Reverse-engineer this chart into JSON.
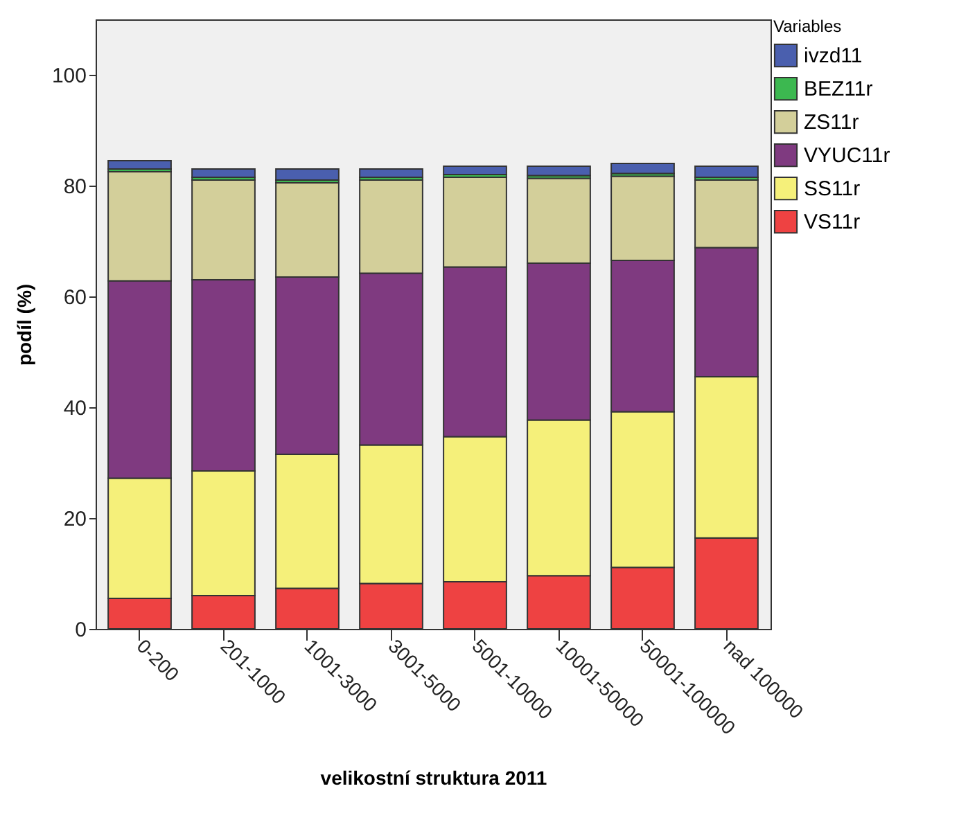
{
  "chart_data": {
    "type": "bar",
    "stacked": true,
    "xlabel": "velikostní struktura 2011",
    "ylabel": "podíl (%)",
    "legend_title": "Variables",
    "legend": "top right",
    "grid": false,
    "categories": [
      "0-200",
      "201-1000",
      "1001-3000",
      "3001-5000",
      "5001-10000",
      "10001-50000",
      "50001-100000",
      "nad 100000"
    ],
    "ylim": [
      0,
      110
    ],
    "yticks": [
      0,
      20,
      40,
      60,
      80,
      100
    ],
    "series": [
      {
        "name": "VS11r",
        "color": "#ee4242",
        "values": [
          5.5,
          6,
          7.3,
          8.2,
          8.5,
          9.6,
          11.1,
          16.4
        ]
      },
      {
        "name": "SS11r",
        "color": "#f5f07a",
        "values": [
          21.7,
          22.5,
          24.2,
          25,
          26.2,
          28.1,
          28.1,
          29.1
        ]
      },
      {
        "name": "VYUC11r",
        "color": "#7f3a80",
        "values": [
          35.6,
          34.5,
          32,
          31,
          30.6,
          28.3,
          27.3,
          23.3
        ]
      },
      {
        "name": "ZS11r",
        "color": "#d3cf9a",
        "values": [
          19.7,
          18,
          17,
          16.8,
          16.2,
          15.3,
          15.2,
          12.2
        ]
      },
      {
        "name": "BEZ11r",
        "color": "#3cb850",
        "values": [
          0.5,
          0.5,
          0.5,
          0.5,
          0.5,
          0.5,
          0.5,
          0.5
        ]
      },
      {
        "name": "ivzd11",
        "color": "#4a5fae",
        "values": [
          1.5,
          1.5,
          2,
          1.5,
          1.5,
          1.7,
          1.8,
          2
        ]
      }
    ]
  }
}
